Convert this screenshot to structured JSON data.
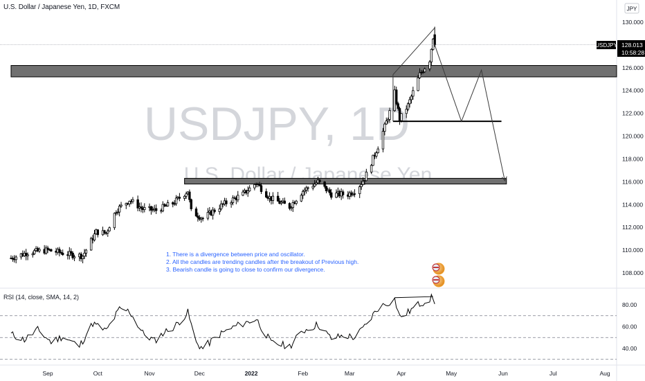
{
  "header": {
    "title": "U.S. Dollar / Japanese Yen, 1D, FXCM"
  },
  "currency_badge": "JPY",
  "watermark": {
    "symbol_line": "USDJPY, 1D",
    "name_line": "U.S. Dollar / Japanese Yen"
  },
  "price_tag": {
    "symbol": "USDJPY",
    "price": "128.013",
    "countdown": "10:58:28"
  },
  "notes": [
    "1.  There is a divergence between price and oscillator.",
    "2.  All the candles are trending candles after the breakout of Previous high.",
    "3.  Bearish candle is going to close to confirm our divergence."
  ],
  "rsi_label": "RSI (14, close, SMA, 14, 2)",
  "colors": {
    "bull": "#ffffff",
    "bear": "#000000",
    "zone": "#707070",
    "rsi": "#000000",
    "note_text": "#2962ff",
    "price_tag_bg": "#000000"
  },
  "chart_data": [
    {
      "type": "candlestick",
      "symbol": "USDJPY",
      "timeframe": "1D",
      "ylim": [
        106.8,
        131.0
      ],
      "y_ticks": [
        "130.000",
        "128.000",
        "126.000",
        "124.000",
        "122.000",
        "120.000",
        "118.000",
        "116.000",
        "114.000",
        "112.000",
        "110.000",
        "108.000"
      ],
      "x_ticks": [
        "Sep",
        "Oct",
        "Nov",
        "Dec",
        "2022",
        "Feb",
        "Mar",
        "Apr",
        "May",
        "Jun",
        "Jul",
        "Aug"
      ],
      "x_tick_dates": [
        "2021-09-01",
        "2021-10-01",
        "2021-11-01",
        "2021-12-01",
        "2022-01-01",
        "2022-02-01",
        "2022-03-01",
        "2022-04-01",
        "2022-05-01",
        "2022-06-01",
        "2022-07-01",
        "2022-08-01"
      ],
      "x_range": [
        "2021-08-10",
        "2022-08-20"
      ],
      "anchors": [
        [
          "2021-08-10",
          109.3
        ],
        [
          "2021-08-20",
          109.8
        ],
        [
          "2021-09-01",
          110.0
        ],
        [
          "2021-09-15",
          109.6
        ],
        [
          "2021-09-22",
          109.5
        ],
        [
          "2021-09-30",
          111.6
        ],
        [
          "2021-10-06",
          111.5
        ],
        [
          "2021-10-12",
          113.5
        ],
        [
          "2021-10-20",
          114.4
        ],
        [
          "2021-10-28",
          113.6
        ],
        [
          "2021-11-05",
          113.5
        ],
        [
          "2021-11-15",
          114.1
        ],
        [
          "2021-11-24",
          115.2
        ],
        [
          "2021-11-26",
          113.4
        ],
        [
          "2021-12-03",
          112.8
        ],
        [
          "2021-12-15",
          114.0
        ],
        [
          "2021-12-27",
          114.9
        ],
        [
          "2022-01-04",
          115.9
        ],
        [
          "2022-01-12",
          114.6
        ],
        [
          "2022-01-24",
          113.8
        ],
        [
          "2022-02-01",
          115.2
        ],
        [
          "2022-02-10",
          116.0
        ],
        [
          "2022-02-18",
          114.9
        ],
        [
          "2022-02-28",
          114.9
        ],
        [
          "2022-03-05",
          115.3
        ],
        [
          "2022-03-10",
          116.3
        ],
        [
          "2022-03-18",
          119.1
        ],
        [
          "2022-03-25",
          122.1
        ],
        [
          "2022-03-28",
          123.8
        ],
        [
          "2022-03-31",
          121.5
        ],
        [
          "2022-04-05",
          122.7
        ],
        [
          "2022-04-12",
          125.4
        ],
        [
          "2022-04-18",
          126.7
        ],
        [
          "2022-04-20",
          128.7
        ],
        [
          "2022-04-21",
          128.0
        ]
      ],
      "zones": [
        {
          "from": "2021-08-10",
          "to": "2022-08-20",
          "low": 125.2,
          "high": 126.2
        },
        {
          "from": "2021-11-22",
          "to": "2022-06-03",
          "low": 115.8,
          "high": 116.3
        }
      ],
      "levels": [
        {
          "from": "2022-03-27",
          "to": "2022-05-31",
          "y": 121.3
        }
      ],
      "current_price": 128.013,
      "projection": [
        [
          "2022-04-21",
          128.0
        ],
        [
          "2022-05-07",
          121.3
        ],
        [
          "2022-05-19",
          125.8
        ],
        [
          "2022-06-02",
          116.1
        ]
      ],
      "wedge": [
        [
          "2022-03-27",
          125.4
        ],
        [
          "2022-04-21",
          129.5
        ]
      ]
    },
    {
      "type": "line",
      "name": "RSI (14, close, SMA, 14, 2)",
      "ylim": [
        30,
        90
      ],
      "y_ticks": [
        "80.00",
        "60.00",
        "40.00"
      ],
      "levels": [
        70,
        50,
        30
      ],
      "anchors": [
        [
          "2021-08-10",
          53
        ],
        [
          "2021-08-18",
          48
        ],
        [
          "2021-08-26",
          57
        ],
        [
          "2021-09-03",
          46
        ],
        [
          "2021-09-10",
          51
        ],
        [
          "2021-09-20",
          42
        ],
        [
          "2021-09-28",
          63
        ],
        [
          "2021-10-06",
          56
        ],
        [
          "2021-10-14",
          76
        ],
        [
          "2021-10-20",
          74
        ],
        [
          "2021-10-28",
          54
        ],
        [
          "2021-11-04",
          47
        ],
        [
          "2021-11-10",
          55
        ],
        [
          "2021-11-16",
          60
        ],
        [
          "2021-11-24",
          73
        ],
        [
          "2021-11-29",
          45
        ],
        [
          "2021-12-03",
          40
        ],
        [
          "2021-12-12",
          52
        ],
        [
          "2021-12-22",
          60
        ],
        [
          "2022-01-04",
          67
        ],
        [
          "2022-01-13",
          45
        ],
        [
          "2022-01-24",
          42
        ],
        [
          "2022-02-01",
          56
        ],
        [
          "2022-02-10",
          62
        ],
        [
          "2022-02-18",
          49
        ],
        [
          "2022-02-26",
          52
        ],
        [
          "2022-03-04",
          50
        ],
        [
          "2022-03-10",
          60
        ],
        [
          "2022-03-18",
          77
        ],
        [
          "2022-03-28",
          85
        ],
        [
          "2022-03-31",
          69
        ],
        [
          "2022-04-04",
          72
        ],
        [
          "2022-04-11",
          80
        ],
        [
          "2022-04-20",
          87
        ],
        [
          "2022-04-21",
          79
        ]
      ],
      "divergence_line": [
        [
          "2022-03-28",
          86.5
        ],
        [
          "2022-04-20",
          87.5
        ]
      ]
    }
  ]
}
